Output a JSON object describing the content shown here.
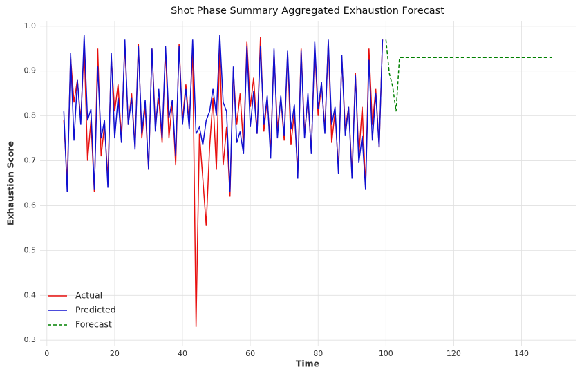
{
  "chart_data": {
    "type": "line",
    "title": "Shot Phase Summary Aggregated Exhaustion Forecast",
    "xlabel": "Time",
    "ylabel": "Exhaustion Score",
    "xlim": [
      -2,
      156
    ],
    "ylim": [
      0.288,
      1.012
    ],
    "xticks": [
      0,
      20,
      40,
      60,
      80,
      100,
      120,
      140
    ],
    "yticks": [
      0.3,
      0.4,
      0.5,
      0.6,
      0.7,
      0.8,
      0.9,
      {
        "value": 1,
        "label": "1.0"
      }
    ],
    "grid": true,
    "legend": "lower left",
    "series": [
      {
        "name": "Actual",
        "color": "#e8100f",
        "linestyle": "solid",
        "x": [
          5,
          6,
          7,
          8,
          9,
          10,
          11,
          12,
          13,
          14,
          15,
          16,
          17,
          18,
          19,
          20,
          21,
          22,
          23,
          24,
          25,
          26,
          27,
          28,
          29,
          30,
          31,
          32,
          33,
          34,
          35,
          36,
          37,
          38,
          39,
          40,
          41,
          42,
          43,
          44,
          45,
          46,
          47,
          48,
          49,
          50,
          51,
          52,
          53,
          54,
          55,
          56,
          57,
          58,
          59,
          60,
          61,
          62,
          63,
          64,
          65,
          66,
          67,
          68,
          69,
          70,
          71,
          72,
          73,
          74,
          75,
          76,
          77,
          78,
          79,
          80,
          81,
          82,
          83,
          84,
          85,
          86,
          87,
          88,
          89,
          90,
          91,
          92,
          93,
          94,
          95,
          96,
          97,
          98,
          99
        ],
        "values": [
          0.79,
          0.65,
          0.93,
          0.83,
          0.88,
          0.79,
          0.96,
          0.7,
          0.79,
          0.63,
          0.95,
          0.71,
          0.78,
          0.66,
          0.93,
          0.81,
          0.87,
          0.75,
          0.96,
          0.78,
          0.85,
          0.73,
          0.96,
          0.75,
          0.82,
          0.68,
          0.95,
          0.78,
          0.84,
          0.74,
          0.95,
          0.75,
          0.83,
          0.69,
          0.96,
          0.79,
          0.87,
          0.78,
          0.95,
          0.33,
          0.76,
          0.66,
          0.555,
          0.73,
          0.84,
          0.68,
          0.95,
          0.69,
          0.775,
          0.62,
          0.9,
          0.78,
          0.85,
          0.73,
          0.965,
          0.82,
          0.885,
          0.76,
          0.975,
          0.765,
          0.84,
          0.72,
          0.945,
          0.77,
          0.84,
          0.745,
          0.94,
          0.735,
          0.81,
          0.67,
          0.95,
          0.76,
          0.84,
          0.72,
          0.955,
          0.8,
          0.87,
          0.77,
          0.965,
          0.74,
          0.81,
          0.68,
          0.93,
          0.77,
          0.82,
          0.67,
          0.895,
          0.71,
          0.82,
          0.64,
          0.95,
          0.78,
          0.86,
          0.73,
          0.97
        ]
      },
      {
        "name": "Predicted",
        "color": "#1010d0",
        "linestyle": "solid",
        "x": [
          5,
          6,
          7,
          8,
          9,
          10,
          11,
          12,
          13,
          14,
          15,
          16,
          17,
          18,
          19,
          20,
          21,
          22,
          23,
          24,
          25,
          26,
          27,
          28,
          29,
          30,
          31,
          32,
          33,
          34,
          35,
          36,
          37,
          38,
          39,
          40,
          41,
          42,
          43,
          44,
          45,
          46,
          47,
          48,
          49,
          50,
          51,
          52,
          53,
          54,
          55,
          56,
          57,
          58,
          59,
          60,
          61,
          62,
          63,
          64,
          65,
          66,
          67,
          68,
          69,
          70,
          71,
          72,
          73,
          74,
          75,
          76,
          77,
          78,
          79,
          80,
          81,
          82,
          83,
          84,
          85,
          86,
          87,
          88,
          89,
          90,
          91,
          92,
          93,
          94,
          95,
          96,
          97,
          98,
          99
        ],
        "values": [
          0.81,
          0.63,
          0.94,
          0.745,
          0.88,
          0.78,
          0.98,
          0.79,
          0.815,
          0.635,
          0.91,
          0.75,
          0.79,
          0.64,
          0.94,
          0.75,
          0.84,
          0.74,
          0.97,
          0.78,
          0.84,
          0.725,
          0.955,
          0.76,
          0.835,
          0.68,
          0.95,
          0.765,
          0.86,
          0.75,
          0.955,
          0.795,
          0.835,
          0.71,
          0.955,
          0.78,
          0.86,
          0.77,
          0.97,
          0.76,
          0.775,
          0.735,
          0.79,
          0.81,
          0.86,
          0.8,
          0.98,
          0.83,
          0.81,
          0.63,
          0.91,
          0.74,
          0.765,
          0.715,
          0.955,
          0.775,
          0.855,
          0.76,
          0.955,
          0.78,
          0.845,
          0.705,
          0.95,
          0.75,
          0.845,
          0.755,
          0.945,
          0.77,
          0.825,
          0.66,
          0.945,
          0.75,
          0.85,
          0.715,
          0.965,
          0.815,
          0.875,
          0.76,
          0.97,
          0.78,
          0.82,
          0.67,
          0.935,
          0.755,
          0.82,
          0.66,
          0.89,
          0.695,
          0.755,
          0.635,
          0.925,
          0.745,
          0.85,
          0.73,
          0.97
        ]
      },
      {
        "name": "Forecast",
        "color": "#008000",
        "linestyle": "dashed",
        "x": [
          100,
          101,
          102,
          103,
          104,
          105,
          106,
          107,
          108,
          109,
          110,
          111,
          112,
          113,
          114,
          115,
          116,
          117,
          118,
          119,
          120,
          121,
          122,
          123,
          124,
          125,
          126,
          127,
          128,
          129,
          130,
          131,
          132,
          133,
          134,
          135,
          136,
          137,
          138,
          139,
          140,
          141,
          142,
          143,
          144,
          145,
          146,
          147,
          148,
          149
        ],
        "values": [
          0.97,
          0.895,
          0.865,
          0.81,
          0.93,
          0.93,
          0.93,
          0.93,
          0.93,
          0.93,
          0.93,
          0.93,
          0.93,
          0.93,
          0.93,
          0.93,
          0.93,
          0.93,
          0.93,
          0.93,
          0.93,
          0.93,
          0.93,
          0.93,
          0.93,
          0.93,
          0.93,
          0.93,
          0.93,
          0.93,
          0.93,
          0.93,
          0.93,
          0.93,
          0.93,
          0.93,
          0.93,
          0.93,
          0.93,
          0.93,
          0.93,
          0.93,
          0.93,
          0.93,
          0.93,
          0.93,
          0.93,
          0.93,
          0.93,
          0.93
        ]
      }
    ]
  }
}
